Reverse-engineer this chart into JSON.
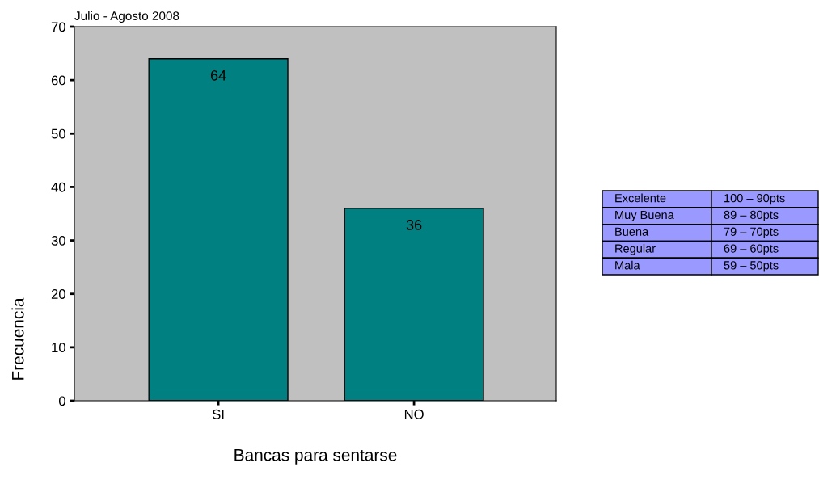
{
  "chart_data": [
    {
      "type": "bar",
      "title": "Julio - Agosto 2008",
      "xlabel": "Bancas para sentarse",
      "ylabel": "Frecuencia",
      "categories": [
        "SI",
        "NO"
      ],
      "values": [
        64,
        36
      ],
      "color": "#008080",
      "ylim": [
        0,
        70
      ],
      "yticks": [
        0,
        10,
        20,
        30,
        40,
        50,
        60,
        70
      ],
      "data_labels": true,
      "grid": false,
      "legend": false
    },
    {
      "type": "other",
      "annotations": [
        "Excelente",
        "100 – 90pts",
        "Muy Buena",
        "89 – 80pts",
        "Buena",
        "79 – 70pts",
        "Regular",
        "69 – 60pts",
        "Mala",
        "59 – 50pts"
      ]
    }
  ]
}
